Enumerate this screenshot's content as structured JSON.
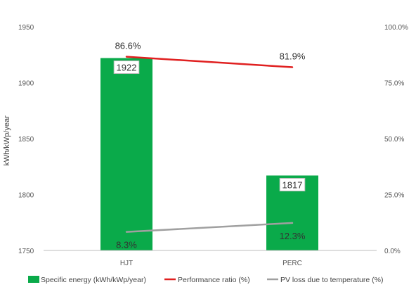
{
  "chart_data": {
    "type": "bar",
    "categories": [
      "HJT",
      "PERC"
    ],
    "series": [
      {
        "name": "Specific energy (kWh/kWp/year)",
        "type": "bar",
        "axis": "left",
        "values": [
          1922,
          1817
        ],
        "labels": [
          "1922",
          "1817"
        ],
        "color": "#0aaa4a"
      },
      {
        "name": "Performance ratio (%)",
        "type": "line",
        "axis": "right",
        "values": [
          86.6,
          81.9
        ],
        "labels": [
          "86.6%",
          "81.9%"
        ],
        "color": "#e02020"
      },
      {
        "name": "PV loss due to temperature (%)",
        "type": "line",
        "axis": "right",
        "values": [
          8.3,
          12.3
        ],
        "labels": [
          "8.3%",
          "12.3%"
        ],
        "color": "#a0a0a0"
      }
    ],
    "y_left": {
      "label": "kWh/kWp/year",
      "range": [
        1750,
        1950
      ],
      "ticks": [
        "1750",
        "1800",
        "1850",
        "1900",
        "1950"
      ]
    },
    "y_right": {
      "label": "",
      "range": [
        0,
        100
      ],
      "ticks": [
        "0.0%",
        "25.0%",
        "50.0%",
        "75.0%",
        "100.0%"
      ]
    },
    "grid": false,
    "legend_position": "bottom"
  }
}
